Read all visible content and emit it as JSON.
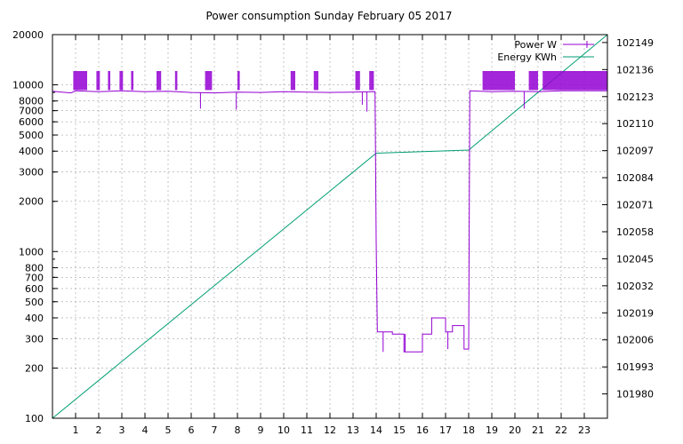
{
  "chart_data": {
    "type": "line",
    "title": "Power consumption Sunday February 05 2017",
    "xlabel": "",
    "ylabel": "",
    "y2label": "",
    "grid": true,
    "legend_position": "top-right",
    "xlim": [
      0,
      24
    ],
    "ylim": [
      100,
      20000
    ],
    "y_scale": "log",
    "y2lim": [
      101968.3,
      102152.8
    ],
    "x_ticks": [
      "1",
      "2",
      "3",
      "4",
      "5",
      "6",
      "7",
      "8",
      "9",
      "10",
      "11",
      "12",
      "13",
      "14",
      "15",
      "16",
      "17",
      "18",
      "19",
      "20",
      "21",
      "22",
      "23"
    ],
    "y_ticks": [
      "20000",
      "10000",
      "8000",
      "7000",
      "6000",
      "5000",
      "4000",
      "3000",
      "2000",
      "1000",
      "800",
      "700",
      "600",
      "500",
      "400",
      "300",
      "200",
      "100"
    ],
    "y2_ticks": [
      "102149",
      "102136",
      "102123",
      "102110",
      "102097",
      "102084",
      "102071",
      "102058",
      "102045",
      "102032",
      "102019",
      "102006",
      "101993",
      "101980"
    ],
    "series": [
      {
        "name": "Power W",
        "color": "#9400d3",
        "axis": "left",
        "baseline": [
          [
            0.0,
            9150
          ],
          [
            0.4,
            9050
          ],
          [
            0.8,
            8950
          ],
          [
            1.0,
            9200
          ],
          [
            2.0,
            9100
          ],
          [
            3.0,
            9200
          ],
          [
            4.0,
            9100
          ],
          [
            5.0,
            9150
          ],
          [
            6.0,
            9000
          ],
          [
            7.0,
            8950
          ],
          [
            8.0,
            9050
          ],
          [
            9.0,
            9000
          ],
          [
            10.0,
            9100
          ],
          [
            11.0,
            9050
          ],
          [
            12.0,
            9000
          ],
          [
            13.0,
            9050
          ],
          [
            13.95,
            9100
          ],
          [
            14.0,
            1150
          ],
          [
            14.05,
            330
          ],
          [
            14.7,
            330
          ],
          [
            14.7,
            320
          ],
          [
            15.2,
            320
          ],
          [
            15.2,
            250
          ],
          [
            16.0,
            250
          ],
          [
            16.0,
            320
          ],
          [
            16.4,
            320
          ],
          [
            16.4,
            400
          ],
          [
            17.0,
            400
          ],
          [
            17.0,
            330
          ],
          [
            17.3,
            330
          ],
          [
            17.3,
            360
          ],
          [
            17.8,
            360
          ],
          [
            17.8,
            260
          ],
          [
            18.0,
            260
          ],
          [
            18.05,
            9200
          ],
          [
            19.0,
            9100
          ],
          [
            20.0,
            9150
          ],
          [
            21.0,
            9100
          ],
          [
            22.0,
            9200
          ],
          [
            24.0,
            9200
          ]
        ],
        "spikes": [
          [
            0.9,
            1.5
          ],
          [
            1.9,
            2.05
          ],
          [
            2.4,
            2.5
          ],
          [
            2.9,
            3.05
          ],
          [
            3.4,
            3.5
          ],
          [
            4.5,
            4.7
          ],
          [
            5.3,
            5.4
          ],
          [
            6.6,
            6.9
          ],
          [
            8.0,
            8.1
          ],
          [
            10.3,
            10.5
          ],
          [
            11.3,
            11.5
          ],
          [
            13.1,
            13.3
          ],
          [
            13.7,
            13.9
          ],
          [
            18.6,
            20.0
          ],
          [
            20.6,
            21.0
          ],
          [
            21.2,
            24.0
          ]
        ],
        "dips": [
          [
            6.4,
            7200
          ],
          [
            7.95,
            7100
          ],
          [
            13.4,
            7600
          ],
          [
            13.6,
            6900
          ],
          [
            14.3,
            250
          ],
          [
            15.25,
            320
          ],
          [
            17.1,
            260
          ],
          [
            20.4,
            7200
          ]
        ],
        "spike_peak": 12000,
        "spike_floor": 9300
      },
      {
        "name": "Energy KWh",
        "color": "#009e73",
        "axis": "right",
        "points": [
          [
            0.0,
            101968.3
          ],
          [
            14.0,
            102095.8
          ],
          [
            18.0,
            102097.3
          ],
          [
            24.0,
            102152.8
          ]
        ]
      }
    ]
  }
}
